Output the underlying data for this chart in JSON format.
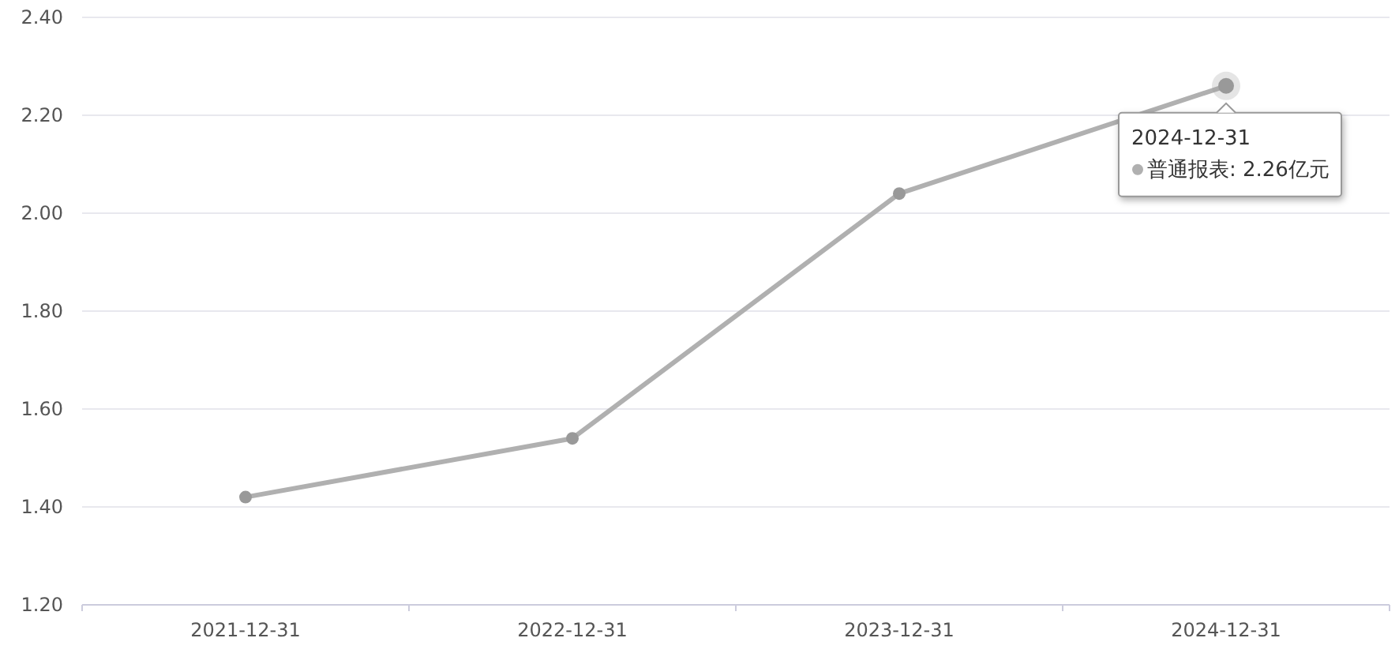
{
  "chart_data": {
    "type": "line",
    "categories": [
      "2021-12-31",
      "2022-12-31",
      "2023-12-31",
      "2024-12-31"
    ],
    "series": [
      {
        "name": "普通报表",
        "color": "#b0b0b0",
        "values": [
          1.42,
          1.54,
          2.04,
          2.26
        ]
      }
    ],
    "ylim": [
      1.2,
      2.4
    ],
    "yticks": [
      {
        "value": 1.2,
        "label": "1.20"
      },
      {
        "value": 1.4,
        "label": "1.40"
      },
      {
        "value": 1.6,
        "label": "1.60"
      },
      {
        "value": 1.8,
        "label": "1.80"
      },
      {
        "value": 2.0,
        "label": "2.00"
      },
      {
        "value": 2.2,
        "label": "2.20"
      },
      {
        "value": 2.4,
        "label": "2.40"
      }
    ],
    "grid": "y",
    "marker": "circle",
    "line_style": "solid",
    "legend": "top right",
    "annotations": [
      ": 2.26亿元"
    ]
  }
}
